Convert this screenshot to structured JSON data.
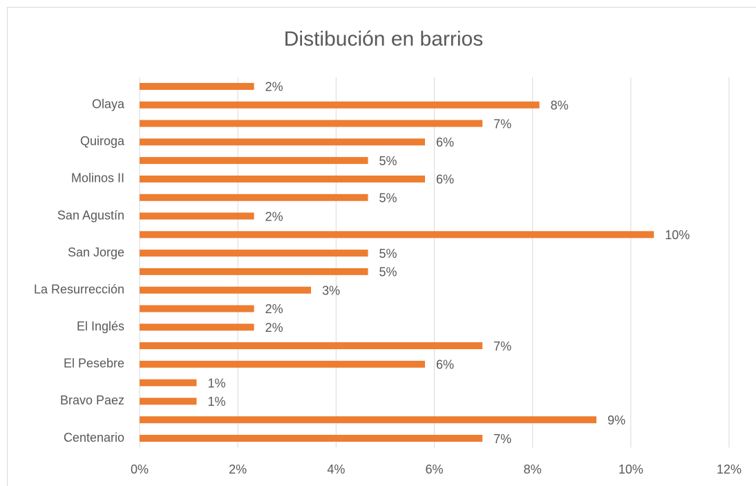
{
  "chart_data": {
    "type": "barh",
    "title": "Distibución en barrios",
    "categories": [
      "Centenario",
      null,
      "Bravo Paez",
      null,
      "El Pesebre",
      null,
      "El Inglés",
      null,
      "La Resurrección",
      null,
      "San Jorge",
      null,
      "San Agustín",
      null,
      "Molinos II",
      null,
      "Quiroga",
      null,
      "Olaya",
      null
    ],
    "values": [
      6.98,
      9.3,
      1.16,
      1.16,
      5.81,
      6.98,
      2.33,
      2.33,
      3.49,
      4.65,
      4.65,
      10.47,
      2.33,
      4.65,
      5.81,
      4.65,
      5.81,
      6.98,
      8.14,
      2.33
    ],
    "value_labels": [
      "7%",
      "9%",
      "1%",
      "1%",
      "6%",
      "7%",
      "2%",
      "2%",
      "3%",
      "5%",
      "5%",
      "10%",
      "2%",
      "5%",
      "6%",
      "5%",
      "6%",
      "7%",
      "8%",
      "2%"
    ],
    "color": "#ed7d31",
    "xlim": [
      0,
      12
    ],
    "xticks": [
      {
        "value": 0,
        "label": "0%"
      },
      {
        "value": 2,
        "label": "2%"
      },
      {
        "value": 4,
        "label": "4%"
      },
      {
        "value": 6,
        "label": "6%"
      },
      {
        "value": 8,
        "label": "8%"
      },
      {
        "value": 10,
        "label": "10%"
      },
      {
        "value": 12,
        "label": "12%"
      }
    ],
    "grid": true
  }
}
